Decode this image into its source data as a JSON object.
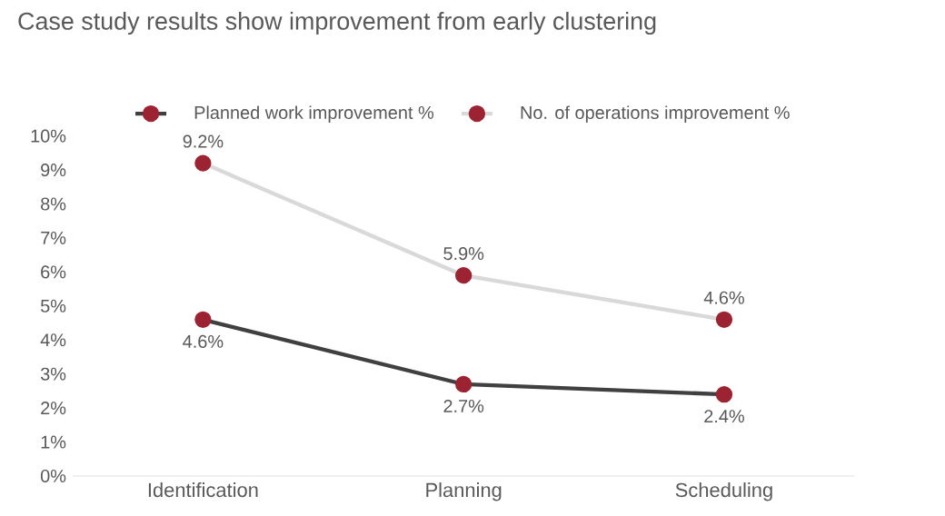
{
  "chart_data": {
    "type": "line",
    "title": "Case study results show improvement from early clustering",
    "categories": [
      "Identification",
      "Planning",
      "Scheduling"
    ],
    "series": [
      {
        "name": "Planned work improvement %",
        "color": "#404040",
        "values": [
          4.6,
          2.7,
          2.4
        ],
        "value_labels": [
          "4.6%",
          "2.7%",
          "2.4%"
        ]
      },
      {
        "name": "No. of operations improvement %",
        "color": "#d9d9d9",
        "values": [
          9.2,
          5.9,
          4.6
        ],
        "value_labels": [
          "9.2%",
          "5.9%",
          "4.6%"
        ]
      }
    ],
    "ylim": [
      0,
      10
    ],
    "yticks": [
      {
        "value": 0,
        "label": "0%"
      },
      {
        "value": 1,
        "label": "1%"
      },
      {
        "value": 2,
        "label": "2%"
      },
      {
        "value": 3,
        "label": "3%"
      },
      {
        "value": 4,
        "label": "4%"
      },
      {
        "value": 5,
        "label": "5%"
      },
      {
        "value": 6,
        "label": "6%"
      },
      {
        "value": 7,
        "label": "7%"
      },
      {
        "value": 8,
        "label": "8%"
      },
      {
        "value": 9,
        "label": "9%"
      },
      {
        "value": 10,
        "label": "10%"
      }
    ],
    "grid": false,
    "legend": "top",
    "marker": "circle",
    "line_style": "solid"
  }
}
